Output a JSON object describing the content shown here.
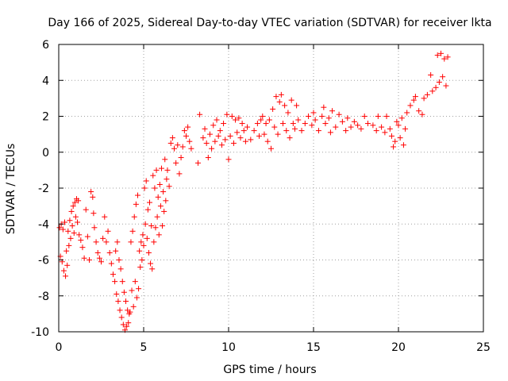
{
  "chart_data": {
    "type": "scatter",
    "title": "Day 166 of 2025, Sidereal Day-to-day VTEC variation (SDTVAR) for receiver lkta",
    "xlabel": "GPS time / hours",
    "ylabel": "SDTVAR / TECUs",
    "xlim": [
      0,
      25
    ],
    "ylim": [
      -10,
      6
    ],
    "xticks": [
      0,
      5,
      10,
      15,
      20,
      25
    ],
    "yticks": [
      -10,
      -8,
      -6,
      -4,
      -2,
      0,
      2,
      4,
      6
    ],
    "xtick_labels": [
      "0",
      "5",
      "10",
      "15",
      "20",
      "25"
    ],
    "ytick_labels": [
      "-10",
      "-8",
      "-6",
      "-4",
      "-2",
      "0",
      "2",
      "4",
      "6"
    ],
    "grid": true,
    "marker": "+",
    "color": "#ff0000",
    "series": [
      {
        "name": "SDTVAR",
        "points": [
          [
            0.05,
            -4.2
          ],
          [
            0.1,
            -5.8
          ],
          [
            0.15,
            -4.0
          ],
          [
            0.2,
            -6.1
          ],
          [
            0.25,
            -4.3
          ],
          [
            0.3,
            -6.6
          ],
          [
            0.35,
            -3.9
          ],
          [
            0.4,
            -6.9
          ],
          [
            0.45,
            -5.5
          ],
          [
            0.5,
            -6.3
          ],
          [
            0.55,
            -4.4
          ],
          [
            0.6,
            -5.2
          ],
          [
            0.65,
            -3.8
          ],
          [
            0.7,
            -4.8
          ],
          [
            0.75,
            -3.3
          ],
          [
            0.8,
            -4.1
          ],
          [
            0.85,
            -3.0
          ],
          [
            0.9,
            -4.5
          ],
          [
            0.95,
            -2.8
          ],
          [
            1.0,
            -3.6
          ],
          [
            1.05,
            -2.6
          ],
          [
            1.1,
            -3.9
          ],
          [
            1.15,
            -2.7
          ],
          [
            1.2,
            -4.6
          ],
          [
            1.3,
            -4.9
          ],
          [
            1.4,
            -5.3
          ],
          [
            1.5,
            -5.9
          ],
          [
            1.6,
            -3.2
          ],
          [
            1.7,
            -4.7
          ],
          [
            1.8,
            -6.0
          ],
          [
            1.9,
            -2.2
          ],
          [
            2.0,
            -2.5
          ],
          [
            2.05,
            -3.4
          ],
          [
            2.1,
            -4.2
          ],
          [
            2.2,
            -5.0
          ],
          [
            2.3,
            -5.6
          ],
          [
            2.4,
            -5.9
          ],
          [
            2.5,
            -6.1
          ],
          [
            2.6,
            -4.8
          ],
          [
            2.7,
            -3.6
          ],
          [
            2.8,
            -5.0
          ],
          [
            2.9,
            -4.4
          ],
          [
            3.0,
            -5.6
          ],
          [
            3.1,
            -6.2
          ],
          [
            3.2,
            -6.8
          ],
          [
            3.3,
            -7.2
          ],
          [
            3.35,
            -5.5
          ],
          [
            3.4,
            -7.9
          ],
          [
            3.45,
            -5.0
          ],
          [
            3.5,
            -8.3
          ],
          [
            3.55,
            -6.0
          ],
          [
            3.6,
            -8.8
          ],
          [
            3.65,
            -6.5
          ],
          [
            3.7,
            -9.2
          ],
          [
            3.75,
            -7.2
          ],
          [
            3.8,
            -9.6
          ],
          [
            3.85,
            -7.8
          ],
          [
            3.9,
            -9.9
          ],
          [
            3.95,
            -8.3
          ],
          [
            4.0,
            -9.7
          ],
          [
            4.05,
            -8.8
          ],
          [
            4.1,
            -9.5
          ],
          [
            4.15,
            -9.0
          ],
          [
            4.2,
            -8.9
          ],
          [
            4.25,
            -5.0
          ],
          [
            4.3,
            -7.7
          ],
          [
            4.35,
            -4.4
          ],
          [
            4.4,
            -8.6
          ],
          [
            4.45,
            -3.6
          ],
          [
            4.5,
            -7.2
          ],
          [
            4.55,
            -2.9
          ],
          [
            4.6,
            -8.1
          ],
          [
            4.65,
            -2.4
          ],
          [
            4.7,
            -7.6
          ],
          [
            4.75,
            -5.5
          ],
          [
            4.8,
            -6.4
          ],
          [
            4.85,
            -5.0
          ],
          [
            4.9,
            -6.0
          ],
          [
            4.95,
            -4.6
          ],
          [
            5.0,
            -5.2
          ],
          [
            5.05,
            -2.0
          ],
          [
            5.1,
            -4.0
          ],
          [
            5.15,
            -1.6
          ],
          [
            5.2,
            -4.8
          ],
          [
            5.25,
            -3.2
          ],
          [
            5.3,
            -5.6
          ],
          [
            5.35,
            -2.8
          ],
          [
            5.4,
            -6.2
          ],
          [
            5.45,
            -4.1
          ],
          [
            5.5,
            -6.5
          ],
          [
            5.55,
            -1.3
          ],
          [
            5.6,
            -5.0
          ],
          [
            5.65,
            -2.0
          ],
          [
            5.7,
            -4.2
          ],
          [
            5.75,
            -1.0
          ],
          [
            5.8,
            -3.6
          ],
          [
            5.85,
            -2.5
          ],
          [
            5.9,
            -4.6
          ],
          [
            5.95,
            -1.8
          ],
          [
            6.0,
            -3.0
          ],
          [
            6.05,
            -0.9
          ],
          [
            6.1,
            -4.1
          ],
          [
            6.15,
            -2.2
          ],
          [
            6.2,
            -3.3
          ],
          [
            6.25,
            -0.4
          ],
          [
            6.3,
            -2.7
          ],
          [
            6.35,
            -1.5
          ],
          [
            6.4,
            -1.0
          ],
          [
            6.5,
            -1.9
          ],
          [
            6.6,
            0.5
          ],
          [
            6.7,
            0.8
          ],
          [
            6.8,
            0.2
          ],
          [
            6.9,
            -0.6
          ],
          [
            7.0,
            0.4
          ],
          [
            7.1,
            -1.2
          ],
          [
            7.2,
            -0.3
          ],
          [
            7.3,
            0.3
          ],
          [
            7.4,
            1.2
          ],
          [
            7.5,
            0.9
          ],
          [
            7.6,
            1.4
          ],
          [
            7.7,
            0.6
          ],
          [
            7.8,
            0.2
          ],
          [
            8.2,
            -0.6
          ],
          [
            8.3,
            2.1
          ],
          [
            8.5,
            0.8
          ],
          [
            8.6,
            1.3
          ],
          [
            8.7,
            0.5
          ],
          [
            8.8,
            -0.3
          ],
          [
            8.9,
            1.0
          ],
          [
            9.0,
            0.2
          ],
          [
            9.1,
            1.5
          ],
          [
            9.2,
            0.6
          ],
          [
            9.3,
            1.8
          ],
          [
            9.4,
            0.9
          ],
          [
            9.5,
            1.2
          ],
          [
            9.6,
            0.4
          ],
          [
            9.7,
            1.6
          ],
          [
            9.8,
            0.7
          ],
          [
            9.9,
            2.1
          ],
          [
            10.0,
            -0.4
          ],
          [
            10.1,
            0.9
          ],
          [
            10.2,
            2.0
          ],
          [
            10.3,
            0.5
          ],
          [
            10.4,
            1.8
          ],
          [
            10.5,
            1.1
          ],
          [
            10.6,
            1.9
          ],
          [
            10.7,
            0.8
          ],
          [
            10.8,
            1.6
          ],
          [
            10.9,
            1.2
          ],
          [
            11.0,
            0.6
          ],
          [
            11.1,
            1.4
          ],
          [
            11.3,
            0.7
          ],
          [
            11.5,
            1.2
          ],
          [
            11.7,
            1.6
          ],
          [
            11.8,
            0.9
          ],
          [
            11.9,
            1.8
          ],
          [
            12.0,
            2.0
          ],
          [
            12.1,
            1.0
          ],
          [
            12.2,
            1.6
          ],
          [
            12.3,
            0.6
          ],
          [
            12.4,
            1.8
          ],
          [
            12.5,
            0.2
          ],
          [
            12.6,
            2.4
          ],
          [
            12.7,
            1.4
          ],
          [
            12.8,
            3.1
          ],
          [
            12.9,
            1.0
          ],
          [
            13.0,
            2.8
          ],
          [
            13.1,
            3.2
          ],
          [
            13.2,
            1.6
          ],
          [
            13.3,
            2.6
          ],
          [
            13.4,
            1.2
          ],
          [
            13.5,
            2.2
          ],
          [
            13.6,
            0.8
          ],
          [
            13.7,
            2.9
          ],
          [
            13.8,
            1.6
          ],
          [
            13.9,
            1.3
          ],
          [
            14.0,
            2.6
          ],
          [
            14.1,
            1.8
          ],
          [
            14.3,
            1.2
          ],
          [
            14.5,
            1.6
          ],
          [
            14.7,
            2.0
          ],
          [
            14.9,
            1.5
          ],
          [
            15.0,
            2.2
          ],
          [
            15.1,
            1.8
          ],
          [
            15.3,
            1.2
          ],
          [
            15.5,
            2.0
          ],
          [
            15.6,
            2.5
          ],
          [
            15.7,
            1.6
          ],
          [
            15.9,
            1.9
          ],
          [
            16.0,
            1.1
          ],
          [
            16.1,
            2.3
          ],
          [
            16.3,
            1.4
          ],
          [
            16.5,
            2.1
          ],
          [
            16.7,
            1.7
          ],
          [
            16.9,
            1.2
          ],
          [
            17.0,
            1.9
          ],
          [
            17.2,
            1.4
          ],
          [
            17.4,
            1.7
          ],
          [
            17.6,
            1.5
          ],
          [
            17.8,
            1.3
          ],
          [
            18.0,
            2.0
          ],
          [
            18.2,
            1.6
          ],
          [
            18.5,
            1.5
          ],
          [
            18.7,
            1.2
          ],
          [
            18.8,
            2.0
          ],
          [
            19.0,
            1.4
          ],
          [
            19.2,
            1.1
          ],
          [
            19.3,
            2.0
          ],
          [
            19.5,
            1.3
          ],
          [
            19.6,
            0.9
          ],
          [
            19.7,
            0.3
          ],
          [
            19.8,
            0.6
          ],
          [
            19.9,
            1.7
          ],
          [
            20.0,
            1.5
          ],
          [
            20.1,
            0.8
          ],
          [
            20.2,
            1.9
          ],
          [
            20.3,
            0.4
          ],
          [
            20.4,
            1.3
          ],
          [
            20.5,
            2.2
          ],
          [
            20.7,
            2.6
          ],
          [
            20.9,
            2.9
          ],
          [
            21.0,
            3.1
          ],
          [
            21.2,
            2.3
          ],
          [
            21.4,
            2.1
          ],
          [
            21.5,
            3.0
          ],
          [
            21.7,
            3.2
          ],
          [
            21.9,
            4.3
          ],
          [
            22.0,
            3.4
          ],
          [
            22.2,
            3.6
          ],
          [
            22.3,
            5.4
          ],
          [
            22.4,
            3.9
          ],
          [
            22.5,
            5.5
          ],
          [
            22.6,
            4.2
          ],
          [
            22.7,
            5.2
          ],
          [
            22.8,
            3.7
          ],
          [
            22.9,
            5.3
          ]
        ]
      }
    ]
  }
}
